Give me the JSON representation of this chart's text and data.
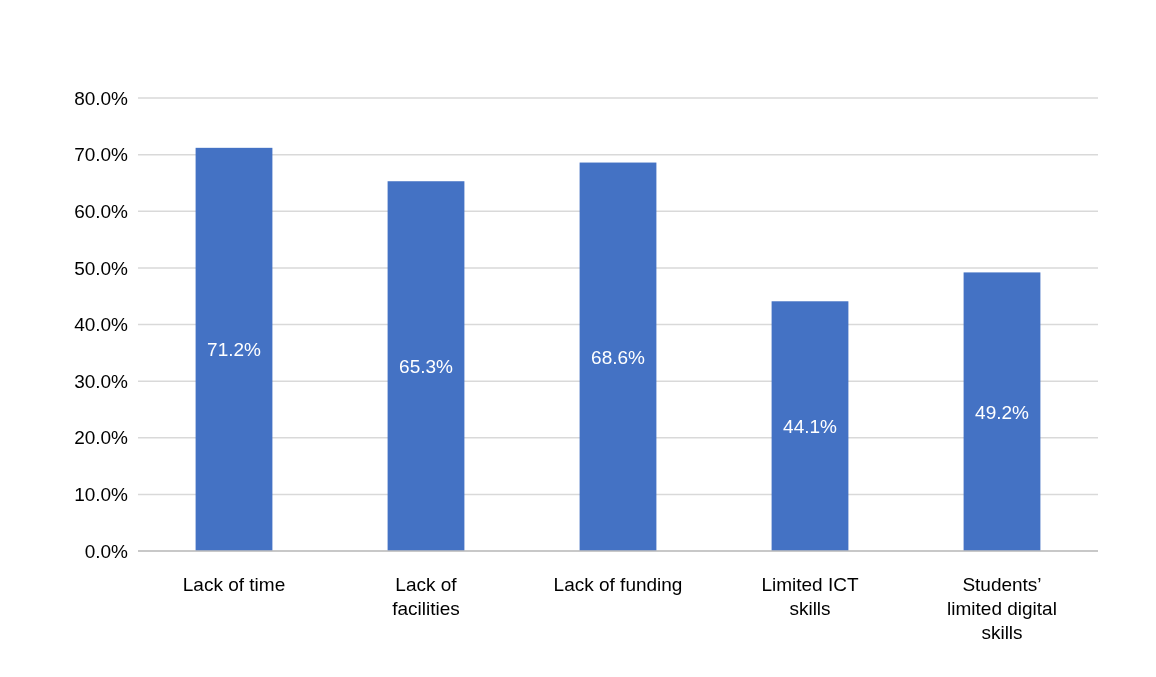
{
  "chart_data": {
    "type": "bar",
    "categories": [
      "Lack of time",
      "Lack of facilities",
      "Lack of funding",
      "Limited ICT skills",
      "Students’ limited digital skills"
    ],
    "values": [
      71.2,
      65.3,
      68.6,
      44.1,
      49.2
    ],
    "value_labels": [
      "71.2%",
      "65.3%",
      "68.6%",
      "44.1%",
      "49.2%"
    ],
    "color": "#4472c4",
    "ylim": [
      0,
      80
    ],
    "yticks": [
      {
        "value": 0,
        "label": "0.0%"
      },
      {
        "value": 10,
        "label": "10.0%"
      },
      {
        "value": 20,
        "label": "20.0%"
      },
      {
        "value": 30,
        "label": "30.0%"
      },
      {
        "value": 40,
        "label": "40.0%"
      },
      {
        "value": 50,
        "label": "50.0%"
      },
      {
        "value": 60,
        "label": "60.0%"
      },
      {
        "value": 70,
        "label": "70.0%"
      },
      {
        "value": 80,
        "label": "80.0%"
      }
    ],
    "grid": "y"
  }
}
